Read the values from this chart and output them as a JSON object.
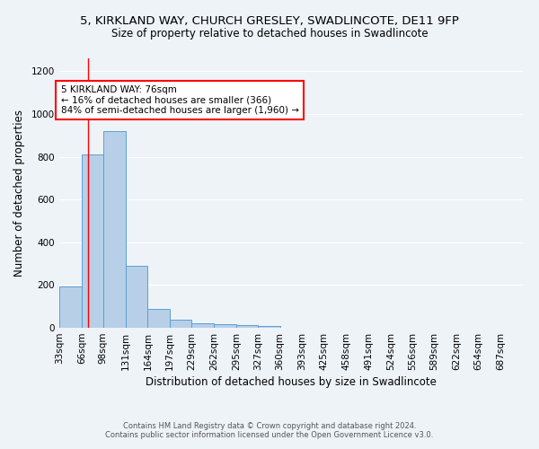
{
  "title_line1": "5, KIRKLAND WAY, CHURCH GRESLEY, SWADLINCOTE, DE11 9FP",
  "title_line2": "Size of property relative to detached houses in Swadlincote",
  "xlabel": "Distribution of detached houses by size in Swadlincote",
  "ylabel": "Number of detached properties",
  "footnote1": "Contains HM Land Registry data © Crown copyright and database right 2024.",
  "footnote2": "Contains public sector information licensed under the Open Government Licence v3.0.",
  "bar_labels": [
    "33sqm",
    "66sqm",
    "98sqm",
    "131sqm",
    "164sqm",
    "197sqm",
    "229sqm",
    "262sqm",
    "295sqm",
    "327sqm",
    "360sqm",
    "393sqm",
    "425sqm",
    "458sqm",
    "491sqm",
    "524sqm",
    "556sqm",
    "589sqm",
    "622sqm",
    "654sqm",
    "687sqm"
  ],
  "bar_values": [
    195,
    810,
    920,
    290,
    88,
    38,
    20,
    18,
    12,
    8,
    0,
    0,
    0,
    0,
    0,
    0,
    0,
    0,
    0,
    0,
    0
  ],
  "bar_color": "#b8cfe8",
  "bar_edge_color": "#5a9fd4",
  "red_line_x": 76,
  "bin_edges": [
    33,
    66,
    98,
    131,
    164,
    197,
    229,
    262,
    295,
    327,
    360,
    393,
    425,
    458,
    491,
    524,
    556,
    589,
    622,
    654,
    687,
    720
  ],
  "annotation_text": "5 KIRKLAND WAY: 76sqm\n← 16% of detached houses are smaller (366)\n84% of semi-detached houses are larger (1,960) →",
  "annotation_box_color": "white",
  "annotation_box_edge": "red",
  "ylim": [
    0,
    1260
  ],
  "yticks": [
    0,
    200,
    400,
    600,
    800,
    1000,
    1200
  ],
  "bg_color": "#eef3f8",
  "grid_color": "white",
  "title1_fontsize": 9.5,
  "title2_fontsize": 8.5,
  "axis_label_fontsize": 8.5,
  "tick_fontsize": 7.5,
  "footnote_fontsize": 6.0,
  "annotation_fontsize": 7.5
}
